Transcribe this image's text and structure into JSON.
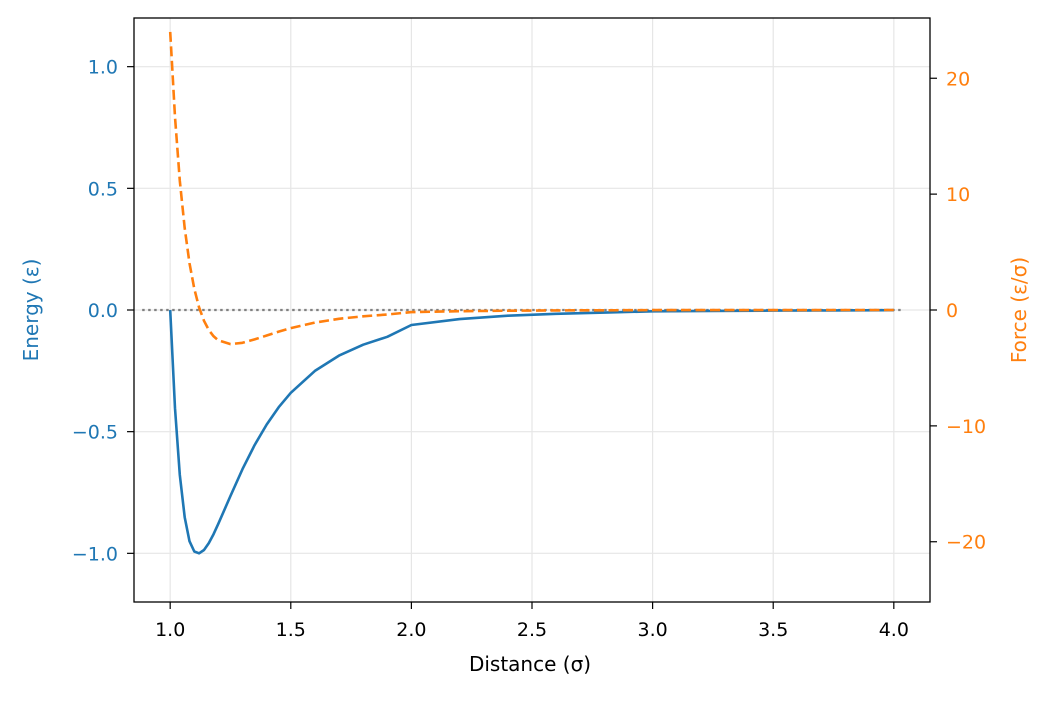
{
  "chart_data": {
    "type": "line",
    "xlabel": "Distance (σ)",
    "ylabel_left": "Energy (ε)",
    "ylabel_right": "Force (ε/σ)",
    "xlim": [
      0.85,
      4.15
    ],
    "ylim_left": [
      -1.2,
      1.2
    ],
    "ylim_right": [
      -25.2,
      25.2
    ],
    "x_ticks": [
      1.0,
      1.5,
      2.0,
      2.5,
      3.0,
      3.5,
      4.0
    ],
    "x_tick_labels": [
      "1.0",
      "1.5",
      "2.0",
      "2.5",
      "3.0",
      "3.5",
      "4.0"
    ],
    "left_ticks": [
      1.0,
      0.5,
      0.0,
      -0.5,
      -1.0
    ],
    "left_tick_labels": [
      "1.0",
      "0.5",
      "0.0",
      "−0.5",
      "−1.0"
    ],
    "right_ticks": [
      20,
      10,
      0,
      -10,
      -20
    ],
    "right_tick_labels": [
      "20",
      "10",
      "0",
      "−10",
      "−20"
    ],
    "grid": true,
    "zero_reference_line": 0.0,
    "colors": {
      "energy": "#1f77b4",
      "force": "#ff7f0e",
      "zero_line": "#808080",
      "grid": "#e6e6e6",
      "axes": "#000000"
    },
    "series": [
      {
        "axis": "left",
        "style": "solid",
        "color": "#1f77b4",
        "x": [
          1.0,
          1.02,
          1.04,
          1.06,
          1.08,
          1.1,
          1.12,
          1.14,
          1.16,
          1.18,
          1.2,
          1.25,
          1.3,
          1.35,
          1.4,
          1.45,
          1.5,
          1.6,
          1.7,
          1.8,
          1.9,
          2.0,
          2.2,
          2.4,
          2.6,
          2.8,
          3.0,
          3.25,
          3.5,
          3.75,
          4.0
        ],
        "y": [
          0.0,
          -0.4034,
          -0.6776,
          -0.8516,
          -0.95,
          -0.9925,
          -0.9998,
          -0.9862,
          -0.9581,
          -0.9208,
          -0.8779,
          -0.764,
          -0.6537,
          -0.5552,
          -0.4706,
          -0.3995,
          -0.3403,
          -0.2501,
          -0.1872,
          -0.1425,
          -0.1102,
          -0.0615,
          -0.0372,
          -0.0236,
          -0.0156,
          -0.0107,
          -0.0055,
          -0.0037,
          -0.0024,
          -0.0016,
          -0.001
        ]
      },
      {
        "axis": "right",
        "style": "dashed",
        "color": "#ff7f0e",
        "x": [
          1.0,
          1.02,
          1.04,
          1.06,
          1.08,
          1.1,
          1.12,
          1.14,
          1.16,
          1.18,
          1.2,
          1.25,
          1.3,
          1.35,
          1.4,
          1.45,
          1.5,
          1.6,
          1.7,
          1.8,
          1.9,
          2.0,
          2.2,
          2.4,
          2.6,
          2.8,
          3.0,
          3.25,
          3.5,
          3.75,
          4.0
        ],
        "y": [
          24.0,
          16.66,
          11.16,
          7.07,
          4.04,
          1.83,
          0.22,
          -0.93,
          -1.73,
          -2.27,
          -2.62,
          -2.94,
          -2.83,
          -2.54,
          -2.2,
          -1.86,
          -1.56,
          -1.09,
          -0.76,
          -0.54,
          -0.39,
          -0.18,
          -0.1,
          -0.059,
          -0.037,
          -0.024,
          -0.012,
          -0.0079,
          -0.0053,
          -0.0036,
          -0.0025
        ]
      }
    ]
  }
}
